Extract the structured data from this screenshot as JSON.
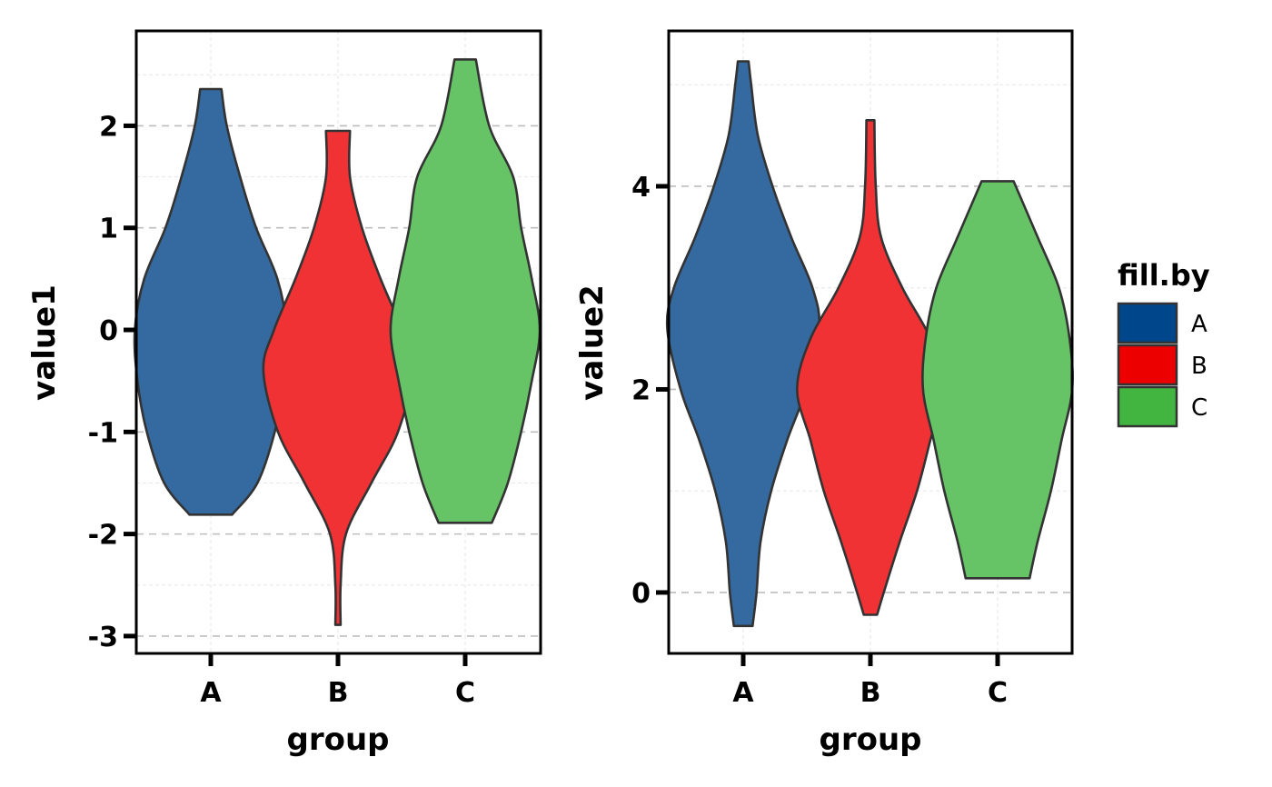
{
  "chart_data": [
    {
      "type": "violin",
      "title": "",
      "xlabel": "group",
      "ylabel": "value1",
      "categories": [
        "A",
        "B",
        "C"
      ],
      "ylim": [
        -3.17,
        2.93
      ],
      "yticks": [
        2,
        1,
        0,
        -1,
        -2,
        -3
      ],
      "ytick_labels": [
        "2",
        "1",
        "0",
        "-1",
        "-2",
        "-3"
      ],
      "grid": true,
      "series": [
        {
          "name": "A",
          "min": -1.81,
          "max": 2.36,
          "density": [
            [
              -1.81,
              0.16
            ],
            [
              -1.5,
              0.35
            ],
            [
              -1.0,
              0.48
            ],
            [
              -0.5,
              0.55
            ],
            [
              0.0,
              0.57
            ],
            [
              0.5,
              0.5
            ],
            [
              1.0,
              0.34
            ],
            [
              1.5,
              0.22
            ],
            [
              2.0,
              0.12
            ],
            [
              2.36,
              0.08
            ]
          ]
        },
        {
          "name": "B",
          "min": -2.89,
          "max": 1.95,
          "density": [
            [
              -2.89,
              0.02
            ],
            [
              -2.5,
              0.02
            ],
            [
              -2.0,
              0.06
            ],
            [
              -1.5,
              0.25
            ],
            [
              -1.0,
              0.45
            ],
            [
              -0.4,
              0.56
            ],
            [
              0.0,
              0.48
            ],
            [
              0.5,
              0.32
            ],
            [
              1.0,
              0.18
            ],
            [
              1.5,
              0.09
            ],
            [
              1.95,
              0.09
            ]
          ]
        },
        {
          "name": "C",
          "min": -1.89,
          "max": 2.65,
          "density": [
            [
              -1.89,
              0.2
            ],
            [
              -1.5,
              0.32
            ],
            [
              -1.0,
              0.42
            ],
            [
              -0.5,
              0.5
            ],
            [
              0.0,
              0.56
            ],
            [
              0.5,
              0.5
            ],
            [
              1.0,
              0.42
            ],
            [
              1.5,
              0.36
            ],
            [
              2.0,
              0.18
            ],
            [
              2.65,
              0.08
            ]
          ]
        }
      ]
    },
    {
      "type": "violin",
      "title": "",
      "xlabel": "group",
      "ylabel": "value2",
      "categories": [
        "A",
        "B",
        "C"
      ],
      "ylim": [
        -0.6,
        5.53
      ],
      "yticks": [
        4,
        2,
        0
      ],
      "ytick_labels": [
        "4",
        "2",
        "0"
      ],
      "grid": true,
      "series": [
        {
          "name": "A",
          "min": -0.33,
          "max": 5.23,
          "density": [
            [
              -0.33,
              0.07
            ],
            [
              0.0,
              0.1
            ],
            [
              0.5,
              0.13
            ],
            [
              1.0,
              0.21
            ],
            [
              1.5,
              0.33
            ],
            [
              2.0,
              0.47
            ],
            [
              2.6,
              0.57
            ],
            [
              3.0,
              0.52
            ],
            [
              3.5,
              0.36
            ],
            [
              4.0,
              0.22
            ],
            [
              4.5,
              0.11
            ],
            [
              5.0,
              0.06
            ],
            [
              5.23,
              0.04
            ]
          ]
        },
        {
          "name": "B",
          "min": -0.22,
          "max": 4.65,
          "density": [
            [
              -0.22,
              0.05
            ],
            [
              0.0,
              0.1
            ],
            [
              0.5,
              0.22
            ],
            [
              1.0,
              0.35
            ],
            [
              1.5,
              0.45
            ],
            [
              2.0,
              0.55
            ],
            [
              2.5,
              0.45
            ],
            [
              3.0,
              0.24
            ],
            [
              3.5,
              0.08
            ],
            [
              4.0,
              0.04
            ],
            [
              4.65,
              0.03
            ]
          ]
        },
        {
          "name": "C",
          "min": 0.14,
          "max": 4.05,
          "density": [
            [
              0.14,
              0.24
            ],
            [
              0.5,
              0.3
            ],
            [
              1.0,
              0.4
            ],
            [
              1.5,
              0.48
            ],
            [
              2.0,
              0.56
            ],
            [
              2.5,
              0.54
            ],
            [
              3.0,
              0.46
            ],
            [
              3.5,
              0.3
            ],
            [
              4.05,
              0.12
            ]
          ]
        }
      ]
    }
  ],
  "legend": {
    "title": "fill.by",
    "placement": "right",
    "items": [
      {
        "label": "A",
        "color": "#00468b"
      },
      {
        "label": "B",
        "color": "#ed0000"
      },
      {
        "label": "C",
        "color": "#42b540"
      }
    ]
  },
  "violin_colors": [
    "#356aa0",
    "#f03235",
    "#66c466"
  ]
}
